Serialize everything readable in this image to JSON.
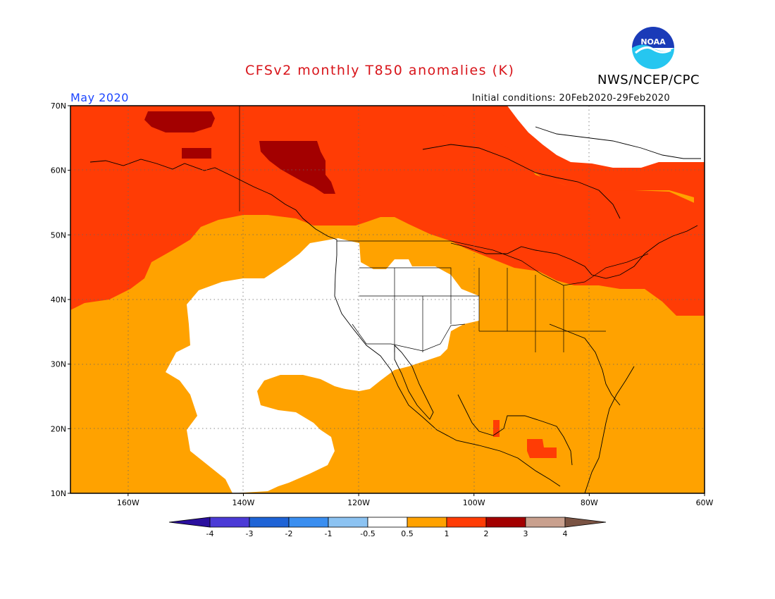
{
  "header": {
    "title": "CFSv2 monthly T850 anomalies (K)",
    "org": "NWS/NCEP/CPC",
    "month": "May 2020",
    "initial_conditions": "Initial conditions: 20Feb2020-29Feb2020",
    "logo_text": "NOAA"
  },
  "map": {
    "lat_labels": [
      "70N",
      "60N",
      "50N",
      "40N",
      "30N",
      "20N",
      "10N"
    ],
    "lon_labels": [
      "160W",
      "140W",
      "120W",
      "100W",
      "80W",
      "60W"
    ],
    "extent": {
      "lon_min": -170,
      "lon_max": -60,
      "lat_min": 10,
      "lat_max": 70
    }
  },
  "legend": {
    "tick_labels": [
      "-4",
      "-3",
      "-2",
      "-1",
      "-0.5",
      "0.5",
      "1",
      "2",
      "3",
      "4"
    ],
    "colors": [
      "#2a0f9e",
      "#4b3ad6",
      "#1e63d6",
      "#3a8ef0",
      "#8cc3f2",
      "#ffffff",
      "#ffa200",
      "#ff3c05",
      "#a30000",
      "#c9a08e",
      "#7a5343"
    ],
    "units": "K"
  },
  "colors": {
    "anomaly_05_1": "#ffa200",
    "anomaly_1_2": "#ff3c05",
    "anomaly_2_3": "#a30000",
    "neutral": "#ffffff",
    "title": "#d8141a",
    "month": "#1a44ff"
  }
}
